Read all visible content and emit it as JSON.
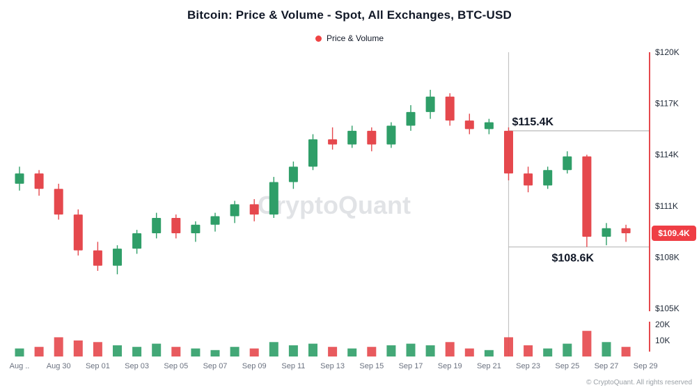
{
  "header": {
    "title": "Bitcoin: Price & Volume - Spot, All Exchanges, BTC-USD"
  },
  "legend": {
    "label": "Price & Volume",
    "dot_color": "#ef4444"
  },
  "watermark": "CryptoQuant",
  "footer": {
    "copyright": "© CryptoQuant. All rights reserved"
  },
  "annotations": {
    "upper_level": {
      "label": "$115.4K",
      "price": 115.4
    },
    "lower_level": {
      "label": "$108.6K",
      "price": 108.6
    },
    "last_price": {
      "label": "$109.4K",
      "price": 109.4,
      "badge_color": "#ef3e45"
    },
    "vline_date": "Sep 22"
  },
  "chart_data": {
    "type": "candlestick+volume",
    "title": "Bitcoin: Price & Volume - Spot, All Exchanges, BTC-USD",
    "series_name": "Price & Volume",
    "up_color": "#2f9e68",
    "down_color": "#e5484d",
    "grid": false,
    "legend_position": "top-center",
    "price_axis": {
      "side": "right",
      "min": 105,
      "max": 120,
      "ticks": [
        {
          "label": "$120K",
          "value": 120
        },
        {
          "label": "$117K",
          "value": 117
        },
        {
          "label": "$114K",
          "value": 114
        },
        {
          "label": "$111K",
          "value": 111
        },
        {
          "label": "$108K",
          "value": 108
        },
        {
          "label": "$105K",
          "value": 105
        }
      ]
    },
    "volume_axis": {
      "side": "right",
      "ref": 20,
      "ticks": [
        {
          "label": "20K",
          "value": 20
        },
        {
          "label": "10K",
          "value": 10
        }
      ]
    },
    "x_ticks": [
      {
        "label": "Aug ..",
        "index": 0
      },
      {
        "label": "Aug 30",
        "index": 2
      },
      {
        "label": "Sep 01",
        "index": 4
      },
      {
        "label": "Sep 03",
        "index": 6
      },
      {
        "label": "Sep 05",
        "index": 8
      },
      {
        "label": "Sep 07",
        "index": 10
      },
      {
        "label": "Sep 09",
        "index": 12
      },
      {
        "label": "Sep 11",
        "index": 14
      },
      {
        "label": "Sep 13",
        "index": 16
      },
      {
        "label": "Sep 15",
        "index": 18
      },
      {
        "label": "Sep 17",
        "index": 20
      },
      {
        "label": "Sep 19",
        "index": 22
      },
      {
        "label": "Sep 21",
        "index": 24
      },
      {
        "label": "Sep 23",
        "index": 26
      },
      {
        "label": "Sep 25",
        "index": 28
      },
      {
        "label": "Sep 27",
        "index": 30
      },
      {
        "label": "Sep 29",
        "index": 32
      }
    ],
    "candles": [
      {
        "date": "Aug 28",
        "open": 112.3,
        "high": 113.3,
        "low": 111.9,
        "close": 112.9,
        "volume": 5
      },
      {
        "date": "Aug 29",
        "open": 112.9,
        "high": 113.1,
        "low": 111.6,
        "close": 112.0,
        "volume": 6
      },
      {
        "date": "Aug 30",
        "open": 112.0,
        "high": 112.3,
        "low": 110.2,
        "close": 110.5,
        "volume": 12
      },
      {
        "date": "Aug 31",
        "open": 110.5,
        "high": 110.8,
        "low": 108.1,
        "close": 108.4,
        "volume": 10
      },
      {
        "date": "Sep 01",
        "open": 108.4,
        "high": 108.9,
        "low": 107.2,
        "close": 107.5,
        "volume": 9
      },
      {
        "date": "Sep 02",
        "open": 107.5,
        "high": 108.7,
        "low": 107.0,
        "close": 108.5,
        "volume": 7
      },
      {
        "date": "Sep 03",
        "open": 108.5,
        "high": 109.6,
        "low": 108.2,
        "close": 109.4,
        "volume": 6
      },
      {
        "date": "Sep 04",
        "open": 109.4,
        "high": 110.6,
        "low": 109.1,
        "close": 110.3,
        "volume": 8
      },
      {
        "date": "Sep 05",
        "open": 110.3,
        "high": 110.5,
        "low": 109.1,
        "close": 109.4,
        "volume": 6
      },
      {
        "date": "Sep 06",
        "open": 109.4,
        "high": 110.1,
        "low": 108.9,
        "close": 109.9,
        "volume": 5
      },
      {
        "date": "Sep 07",
        "open": 109.9,
        "high": 110.6,
        "low": 109.5,
        "close": 110.4,
        "volume": 4
      },
      {
        "date": "Sep 08",
        "open": 110.4,
        "high": 111.3,
        "low": 110.0,
        "close": 111.1,
        "volume": 6
      },
      {
        "date": "Sep 09",
        "open": 111.1,
        "high": 111.4,
        "low": 110.1,
        "close": 110.5,
        "volume": 5
      },
      {
        "date": "Sep 10",
        "open": 110.5,
        "high": 112.7,
        "low": 110.3,
        "close": 112.4,
        "volume": 9
      },
      {
        "date": "Sep 11",
        "open": 112.4,
        "high": 113.6,
        "low": 112.0,
        "close": 113.3,
        "volume": 7
      },
      {
        "date": "Sep 12",
        "open": 113.3,
        "high": 115.2,
        "low": 113.1,
        "close": 114.9,
        "volume": 8
      },
      {
        "date": "Sep 13",
        "open": 114.9,
        "high": 115.6,
        "low": 114.3,
        "close": 114.6,
        "volume": 6
      },
      {
        "date": "Sep 14",
        "open": 114.6,
        "high": 115.7,
        "low": 114.4,
        "close": 115.4,
        "volume": 5
      },
      {
        "date": "Sep 15",
        "open": 115.4,
        "high": 115.6,
        "low": 114.2,
        "close": 114.6,
        "volume": 6
      },
      {
        "date": "Sep 16",
        "open": 114.6,
        "high": 115.9,
        "low": 114.4,
        "close": 115.7,
        "volume": 7
      },
      {
        "date": "Sep 17",
        "open": 115.7,
        "high": 116.9,
        "low": 115.4,
        "close": 116.5,
        "volume": 8
      },
      {
        "date": "Sep 18",
        "open": 116.5,
        "high": 117.8,
        "low": 116.1,
        "close": 117.4,
        "volume": 7
      },
      {
        "date": "Sep 19",
        "open": 117.4,
        "high": 117.6,
        "low": 115.7,
        "close": 116.0,
        "volume": 9
      },
      {
        "date": "Sep 20",
        "open": 116.0,
        "high": 116.4,
        "low": 115.2,
        "close": 115.5,
        "volume": 5
      },
      {
        "date": "Sep 21",
        "open": 115.5,
        "high": 116.1,
        "low": 115.2,
        "close": 115.9,
        "volume": 4
      },
      {
        "date": "Sep 22",
        "open": 115.4,
        "high": 115.6,
        "low": 112.5,
        "close": 112.9,
        "volume": 12
      },
      {
        "date": "Sep 23",
        "open": 112.9,
        "high": 113.3,
        "low": 111.8,
        "close": 112.2,
        "volume": 7
      },
      {
        "date": "Sep 24",
        "open": 112.2,
        "high": 113.3,
        "low": 112.0,
        "close": 113.1,
        "volume": 5
      },
      {
        "date": "Sep 25",
        "open": 113.1,
        "high": 114.2,
        "low": 112.9,
        "close": 113.9,
        "volume": 8
      },
      {
        "date": "Sep 26",
        "open": 113.9,
        "high": 114.0,
        "low": 108.6,
        "close": 109.2,
        "volume": 16
      },
      {
        "date": "Sep 27",
        "open": 109.2,
        "high": 110.0,
        "low": 108.7,
        "close": 109.7,
        "volume": 9
      },
      {
        "date": "Sep 28",
        "open": 109.7,
        "high": 109.9,
        "low": 108.9,
        "close": 109.4,
        "volume": 6
      }
    ]
  }
}
